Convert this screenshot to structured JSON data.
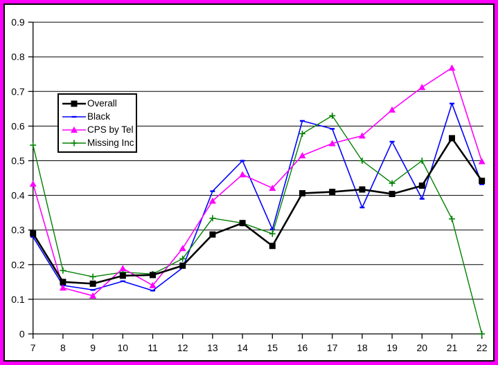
{
  "frame": {
    "outer_border_color": "#FF00FF",
    "inner_border_color": "#000000",
    "background_color": "#FFFFFF",
    "text_color": "#000000"
  },
  "legend": {
    "position": "upper-left-inside",
    "entries": [
      "Overall",
      "Black",
      "CPS by Tel",
      "Missing Inc"
    ]
  },
  "chart_data": {
    "type": "line",
    "title": "",
    "xlabel": "",
    "ylabel": "",
    "xlim": [
      7,
      22
    ],
    "ylim": [
      0,
      0.9
    ],
    "grid": "horizontal",
    "legend_position": "upper-left-inside",
    "x": [
      7,
      8,
      9,
      10,
      11,
      12,
      13,
      14,
      15,
      16,
      17,
      18,
      19,
      20,
      21,
      22
    ],
    "x_tick_labels": [
      "7",
      "8",
      "9",
      "10",
      "11",
      "12",
      "13",
      "14",
      "15",
      "16",
      "17",
      "18",
      "19",
      "20",
      "21",
      "22"
    ],
    "y_ticks": [
      {
        "v": 0.0,
        "label": "0"
      },
      {
        "v": 0.1,
        "label": "0.1"
      },
      {
        "v": 0.2,
        "label": "0.2"
      },
      {
        "v": 0.3,
        "label": "0.3"
      },
      {
        "v": 0.4,
        "label": "0.4"
      },
      {
        "v": 0.5,
        "label": "0.5"
      },
      {
        "v": 0.6,
        "label": "0.6"
      },
      {
        "v": 0.7,
        "label": "0.7"
      },
      {
        "v": 0.8,
        "label": "0.8"
      },
      {
        "v": 0.9,
        "label": "0.9"
      }
    ],
    "series": [
      {
        "name": "Overall",
        "color": "#000000",
        "marker": "square",
        "values": [
          0.29,
          0.15,
          0.145,
          0.168,
          0.17,
          0.197,
          0.287,
          0.32,
          0.254,
          0.406,
          0.41,
          0.417,
          0.404,
          0.428,
          0.565,
          0.442
        ]
      },
      {
        "name": "Black",
        "color": "#0000FF",
        "marker": "dash",
        "values": [
          0.28,
          0.14,
          0.127,
          0.152,
          0.125,
          0.191,
          0.412,
          0.5,
          0.302,
          0.615,
          0.592,
          0.365,
          0.555,
          0.39,
          0.665,
          0.432
        ]
      },
      {
        "name": "CPS by Tel",
        "color": "#FF00FF",
        "marker": "triangle",
        "values": [
          0.433,
          0.133,
          0.11,
          0.189,
          0.14,
          0.247,
          0.384,
          0.46,
          0.421,
          0.515,
          0.55,
          0.572,
          0.647,
          0.712,
          0.768,
          0.498
        ]
      },
      {
        "name": "Missing Inc",
        "color": "#008000",
        "marker": "plus",
        "values": [
          0.545,
          0.183,
          0.165,
          0.178,
          0.173,
          0.217,
          0.334,
          0.32,
          0.289,
          0.578,
          0.63,
          0.5,
          0.435,
          0.5,
          0.332,
          0.0
        ]
      }
    ],
    "draw_order": [
      "Black",
      "Missing Inc",
      "CPS by Tel",
      "Overall"
    ]
  }
}
